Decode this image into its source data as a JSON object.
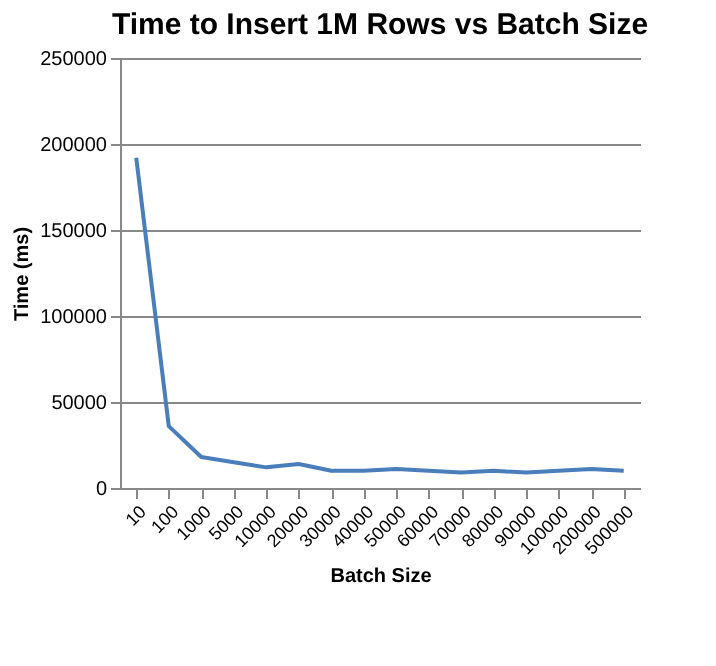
{
  "chart_data": {
    "type": "line",
    "title": "Time to Insert 1M Rows vs Batch Size",
    "xlabel": "Batch Size",
    "ylabel": "Time (ms)",
    "categories": [
      "10",
      "100",
      "1000",
      "5000",
      "10000",
      "20000",
      "30000",
      "40000",
      "50000",
      "60000",
      "70000",
      "80000",
      "90000",
      "100000",
      "200000",
      "500000"
    ],
    "series": [
      {
        "color": "#4a7ebb",
        "values": [
          192000,
          36000,
          18000,
          15000,
          12000,
          14000,
          10000,
          10000,
          11000,
          10000,
          9000,
          10000,
          9000,
          10000,
          11000,
          10000
        ]
      }
    ],
    "ylim": [
      0,
      250000
    ],
    "yticks": [
      0,
      50000,
      100000,
      150000,
      200000,
      250000
    ],
    "grid": "y",
    "legend": false,
    "marker": "none",
    "line_style": "solid"
  }
}
